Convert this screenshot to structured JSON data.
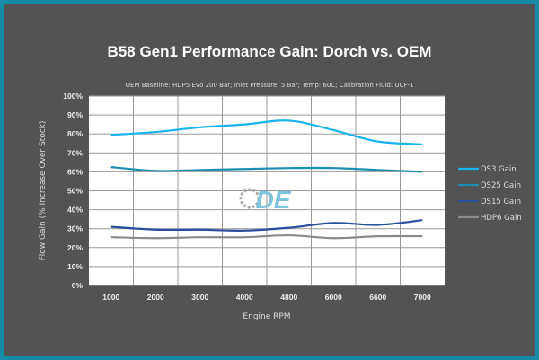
{
  "chart_data": {
    "type": "line",
    "title": "B58 Gen1 Performance Gain: Dorch vs. OEM",
    "subtitle": "OEM Baseline: HDP5 Evo 200 Bar; Inlet Pressure: 5 Bar; Temp: 60C; Calibration Fluid: UCF-1",
    "xlabel": "Engine RPM",
    "ylabel": "Flow Gain (% Increase Over Stock)",
    "categories": [
      "1000",
      "2000",
      "3000",
      "4000",
      "4800",
      "6000",
      "6600",
      "7000"
    ],
    "ylim": [
      0,
      100
    ],
    "yticks": [
      "0%",
      "10%",
      "20%",
      "30%",
      "40%",
      "50%",
      "60%",
      "70%",
      "80%",
      "90%",
      "100%"
    ],
    "grid": true,
    "legend_position": "right",
    "series": [
      {
        "name": "DS3 Gain",
        "color": "#18b4f0",
        "values": [
          79.5,
          81,
          83.5,
          85,
          87,
          82,
          76,
          74.5
        ]
      },
      {
        "name": "DS25 Gain",
        "color": "#1b8fb0",
        "values": [
          62.5,
          60.5,
          61,
          61.5,
          62,
          62,
          61,
          60
        ]
      },
      {
        "name": "DS15 Gain",
        "color": "#2a4ea0",
        "values": [
          31,
          29.5,
          29.5,
          29,
          30.5,
          33,
          32,
          34.5
        ]
      },
      {
        "name": "HDP6 Gain",
        "color": "#8a8a8a",
        "values": [
          25.5,
          25,
          25.5,
          25.5,
          26.5,
          25,
          26,
          26
        ]
      }
    ],
    "watermark": "DE"
  }
}
